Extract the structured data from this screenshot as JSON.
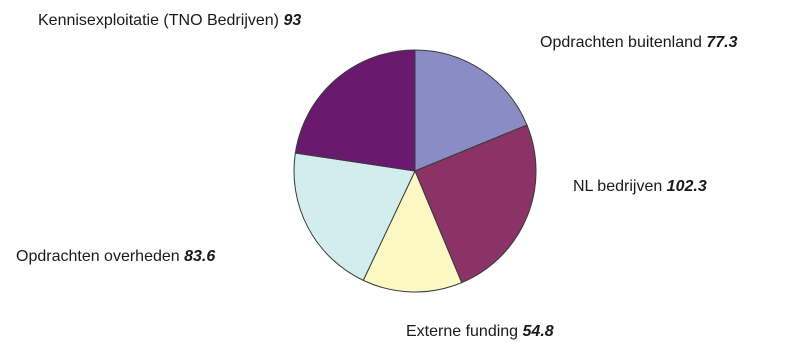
{
  "chart_data": {
    "type": "pie",
    "title": "",
    "slices": [
      {
        "label": "Opdrachten buitenland",
        "value": 77.3,
        "value_text": "77.3",
        "color": "#8a8cc6"
      },
      {
        "label": "NL bedrijven",
        "value": 102.3,
        "value_text": "102.3",
        "color": "#8b3366"
      },
      {
        "label": "Externe funding",
        "value": 54.8,
        "value_text": "54.8",
        "color": "#fbf8c4"
      },
      {
        "label": "Opdrachten overheden",
        "value": 83.6,
        "value_text": "83.6",
        "color": "#d3eced"
      },
      {
        "label": "Kennisexploitatie (TNO Bedrijven)",
        "value": 93,
        "value_text": "93",
        "color": "#6a1a6e"
      }
    ],
    "start_angle": "12 o'clock",
    "direction": "clockwise",
    "legend": "none",
    "labels": "outside"
  }
}
